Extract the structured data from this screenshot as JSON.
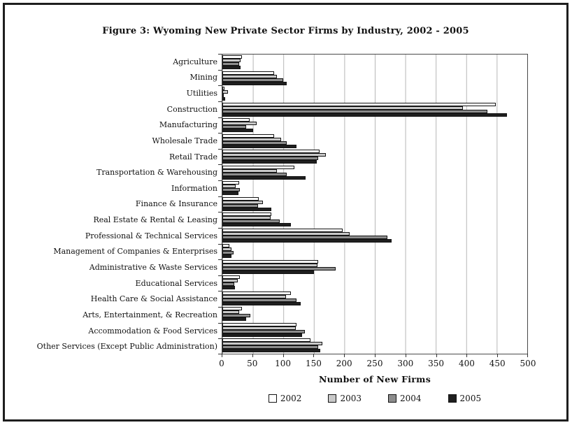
{
  "chart_data": {
    "type": "bar",
    "orientation": "horizontal",
    "title": "Figure 3: Wyoming New Private Sector Firms by Industry, 2002 - 2005",
    "xlabel": "Number of New Firms",
    "xlim": [
      0,
      500
    ],
    "xticks": [
      0,
      50,
      100,
      150,
      200,
      250,
      300,
      350,
      400,
      450,
      500
    ],
    "grid": true,
    "legend_position": "bottom",
    "categories": [
      "Agriculture",
      "Mining",
      "Utilities",
      "Construction",
      "Manufacturing",
      "Wholesale Trade",
      "Retail Trade",
      "Transportation & Warehousing",
      "Information",
      "Finance & Insurance",
      "Real Estate & Rental & Leasing",
      "Professional & Technical Services",
      "Management of Companies & Enterprises",
      "Administrative & Waste Services",
      "Educational Services",
      "Health Care & Social Assistance",
      "Arts, Entertainment, & Recreation",
      "Accommodation & Food Services",
      "Other Services (Except Public Administration)"
    ],
    "series": [
      {
        "name": "2002",
        "color": "#ffffff",
        "values": [
          32,
          85,
          3,
          448,
          45,
          85,
          159,
          118,
          27,
          60,
          80,
          197,
          11,
          157,
          29,
          112,
          32,
          121,
          145
        ]
      },
      {
        "name": "2003",
        "color": "#c8c8c8",
        "values": [
          30,
          90,
          9,
          395,
          56,
          96,
          170,
          90,
          22,
          67,
          79,
          209,
          15,
          156,
          25,
          104,
          28,
          120,
          164
        ]
      },
      {
        "name": "2004",
        "color": "#8c8c8c",
        "values": [
          28,
          100,
          2,
          435,
          39,
          105,
          157,
          105,
          29,
          59,
          94,
          271,
          18,
          186,
          20,
          122,
          46,
          135,
          157
        ]
      },
      {
        "name": "2005",
        "color": "#1f1f1f",
        "values": [
          30,
          105,
          5,
          467,
          50,
          121,
          155,
          136,
          26,
          80,
          112,
          278,
          15,
          150,
          21,
          128,
          39,
          131,
          161
        ]
      }
    ]
  }
}
